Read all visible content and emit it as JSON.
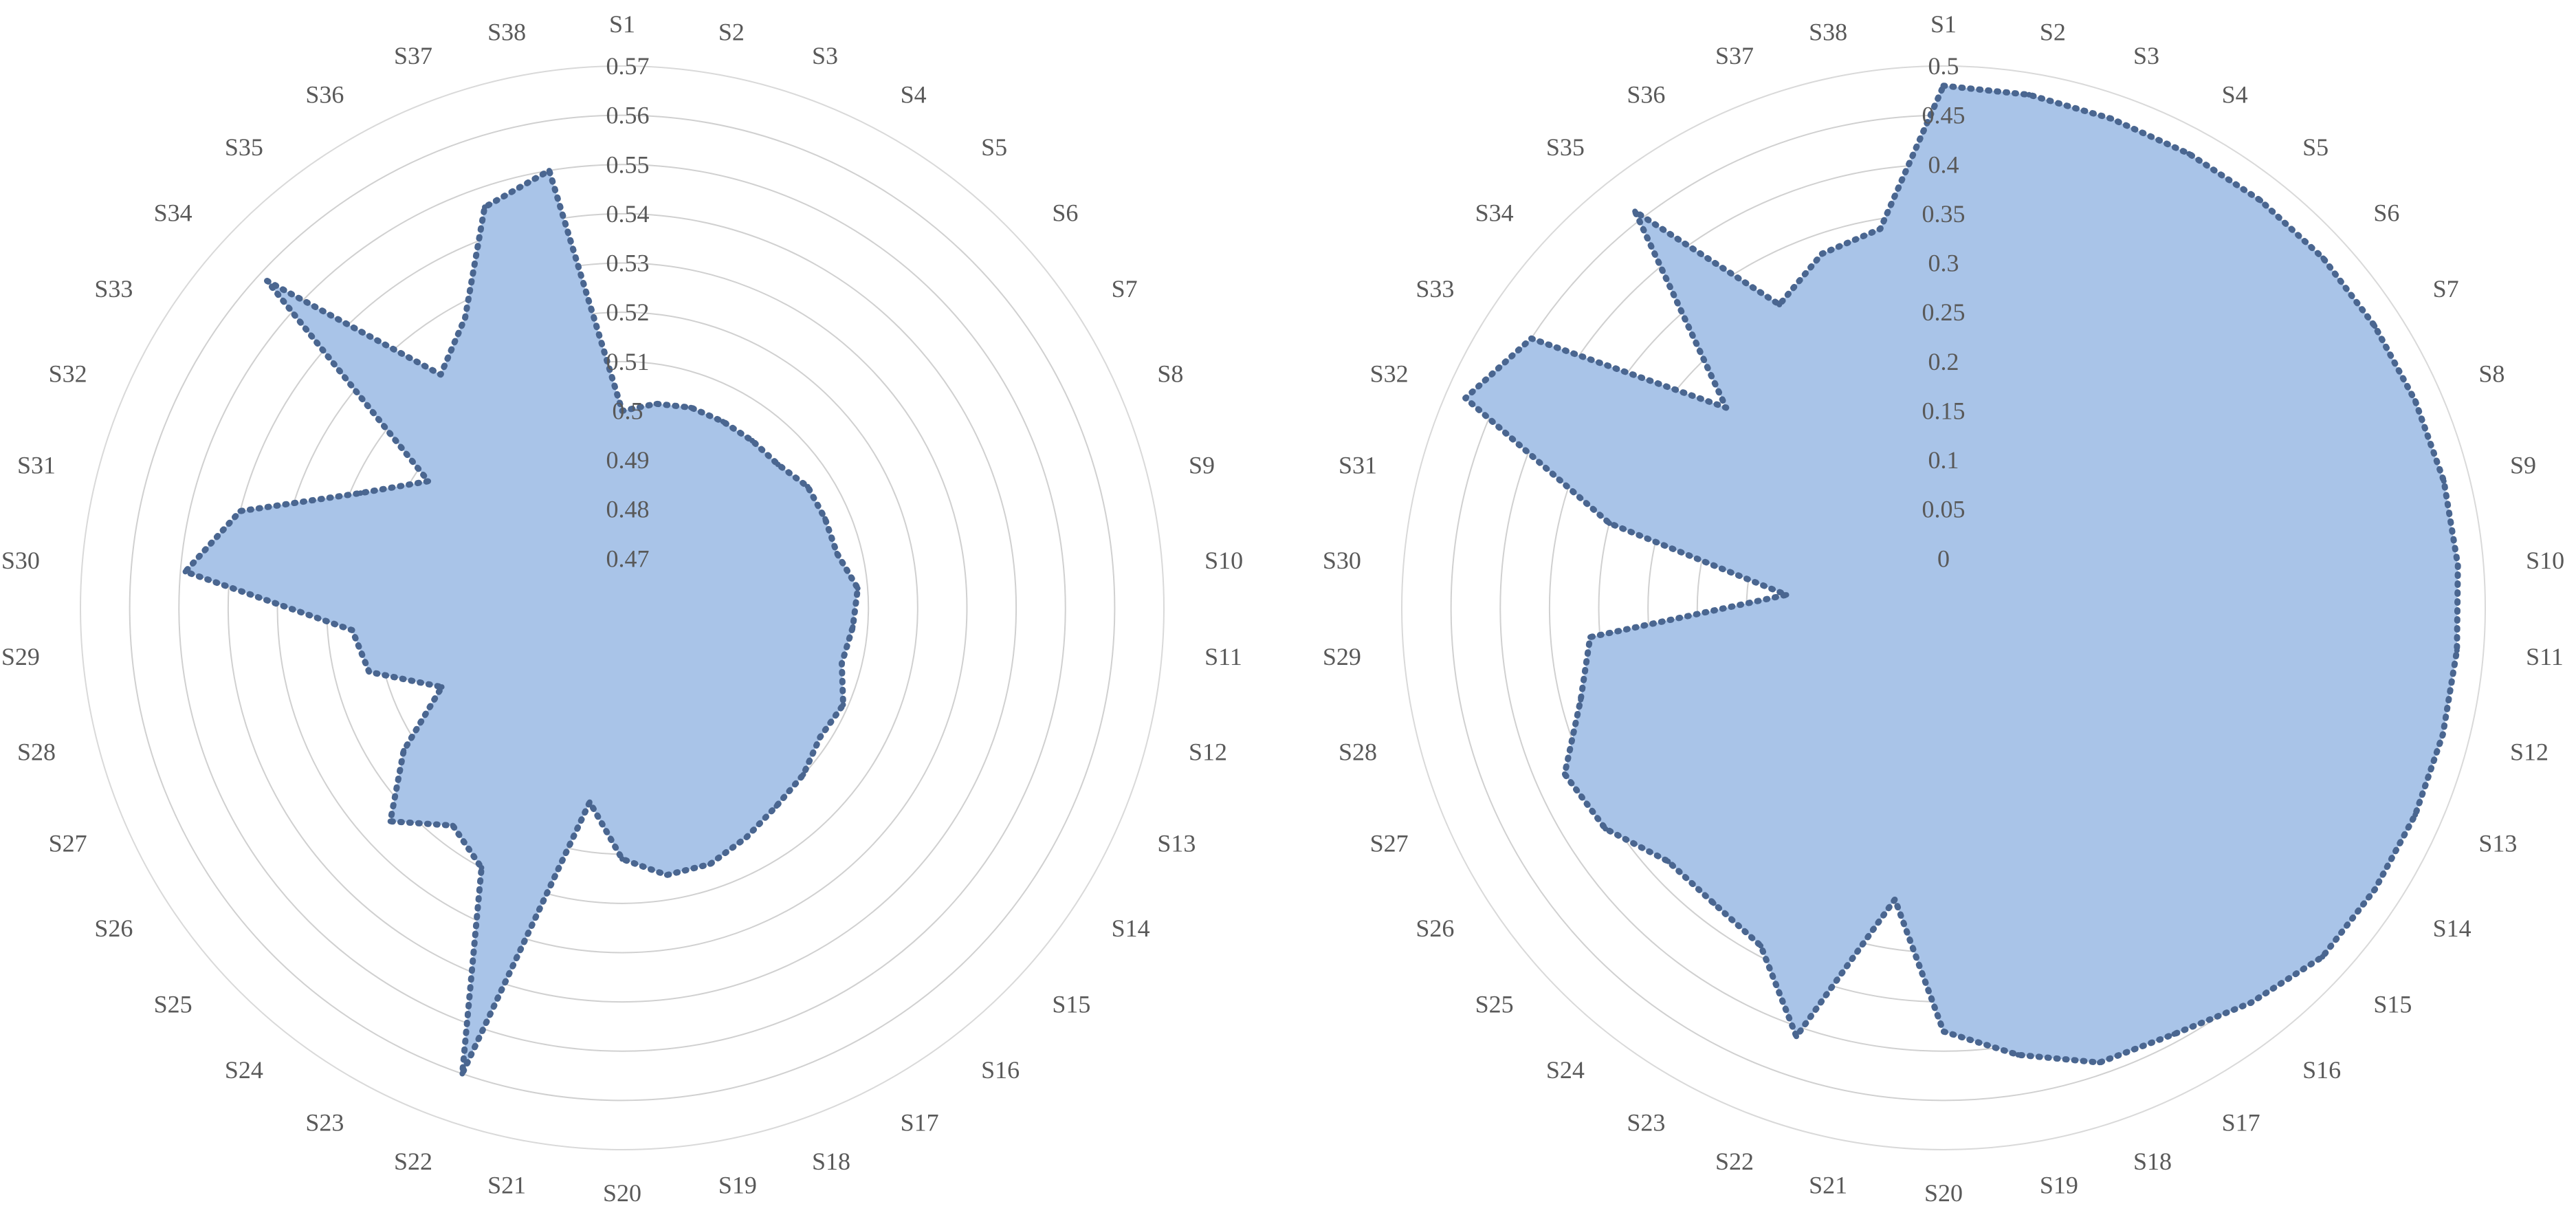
{
  "chart_data": [
    {
      "type": "radar",
      "categories": [
        "S1",
        "S2",
        "S3",
        "S4",
        "S5",
        "S6",
        "S7",
        "S8",
        "S9",
        "S10",
        "S11",
        "S12",
        "S13",
        "S14",
        "S15",
        "S16",
        "S17",
        "S18",
        "S19",
        "S20",
        "S21",
        "S22",
        "S23",
        "S24",
        "S25",
        "S26",
        "S27",
        "S28",
        "S29",
        "S30",
        "S31",
        "S32",
        "S33",
        "S34",
        "S35",
        "S36",
        "S37",
        "S38"
      ],
      "ticks": [
        "0.47",
        "0.48",
        "0.49",
        "0.5",
        "0.51",
        "0.52",
        "0.53",
        "0.54",
        "0.55",
        "0.56",
        "0.57"
      ],
      "rmin": 0.46,
      "rmax": 0.57,
      "grid": true,
      "fill_color": "#a9c4e8",
      "line_color": "#4a6690",
      "values": [
        0.5,
        0.502,
        0.503,
        0.503,
        0.503,
        0.503,
        0.505,
        0.505,
        0.505,
        0.508,
        0.507,
        0.506,
        0.509,
        0.508,
        0.51,
        0.511,
        0.513,
        0.515,
        0.515,
        0.511,
        0.5,
        0.56,
        0.52,
        0.516,
        0.524,
        0.513,
        0.5,
        0.513,
        0.515,
        0.549,
        0.54,
        0.518,
        0.507,
        0.558,
        0.52,
        0.527,
        0.546,
        0.55
      ]
    },
    {
      "type": "radar",
      "categories": [
        "S1",
        "S2",
        "S3",
        "S4",
        "S5",
        "S6",
        "S7",
        "S8",
        "S9",
        "S10",
        "S11",
        "S12",
        "S13",
        "S14",
        "S15",
        "S16",
        "S17",
        "S18",
        "S19",
        "S20",
        "S21",
        "S22",
        "S23",
        "S24",
        "S25",
        "S26",
        "S27",
        "S28",
        "S29",
        "S30",
        "S31",
        "S32",
        "S33",
        "S34",
        "S35",
        "S36",
        "S37",
        "S38"
      ],
      "ticks": [
        "0",
        "0.05",
        "0.1",
        "0.15",
        "0.2",
        "0.25",
        "0.3",
        "0.35",
        "0.4",
        "0.45",
        "0.5"
      ],
      "rmin": -0.05,
      "rmax": 0.5,
      "grid": true,
      "fill_color": "#a9c4e8",
      "line_color": "#4a6690",
      "values": [
        0.48,
        0.478,
        0.475,
        0.474,
        0.474,
        0.474,
        0.473,
        0.473,
        0.474,
        0.474,
        0.473,
        0.473,
        0.473,
        0.473,
        0.473,
        0.458,
        0.442,
        0.438,
        0.41,
        0.38,
        0.25,
        0.41,
        0.34,
        0.33,
        0.33,
        0.36,
        0.37,
        0.33,
        0.31,
        0.11,
        0.3,
        0.48,
        0.45,
        0.25,
        0.46,
        0.3,
        0.33,
        0.34
      ]
    }
  ]
}
